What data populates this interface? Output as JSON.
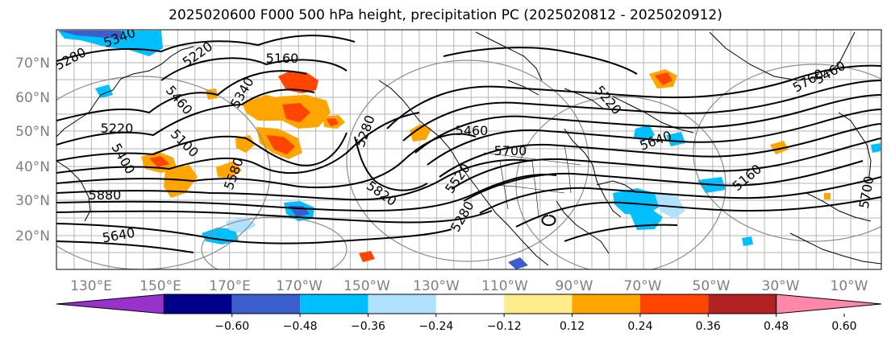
{
  "title": "2025020600 F000 500 hPa height, precipitation PC (2025020812 - 2025020912)",
  "lat_labels": [
    "70°N",
    "60°N",
    "50°N",
    "40°N",
    "30°N",
    "20°N"
  ],
  "lon_labels": [
    "130°E",
    "150°E",
    "170°E",
    "170°W",
    "150°W",
    "130°W",
    "110°W",
    "90°W",
    "70°W",
    "50°W",
    "30°W",
    "10°W"
  ],
  "contour_labels": [
    "5280",
    "5340",
    "5220",
    "5160",
    "5340",
    "5460",
    "5220",
    "5100",
    "5400",
    "5580",
    "5280",
    "5460",
    "5700",
    "5520",
    "5880",
    "5640",
    "5820",
    "5280",
    "5220",
    "5460",
    "5760",
    "5160",
    "5640",
    "5700"
  ],
  "colorbar": {
    "ticks": [
      "−0.60",
      "−0.48",
      "−0.36",
      "−0.24",
      "−0.12",
      "0.12",
      "0.24",
      "0.36",
      "0.48",
      "0.60"
    ],
    "colors": [
      "#9932cc",
      "#00008b",
      "#3a5fcd",
      "#00bfff",
      "#b0e2ff",
      "#ffffff",
      "#ffec8b",
      "#ffa500",
      "#ff4500",
      "#b22222",
      "#ff88aa"
    ]
  },
  "precip_colors": {
    "orange": "#ffa500",
    "red": "#ff4500",
    "darkred": "#b22222",
    "skyblue": "#00bfff",
    "lightblue": "#b0e2ff",
    "blue": "#3a5fcd"
  }
}
